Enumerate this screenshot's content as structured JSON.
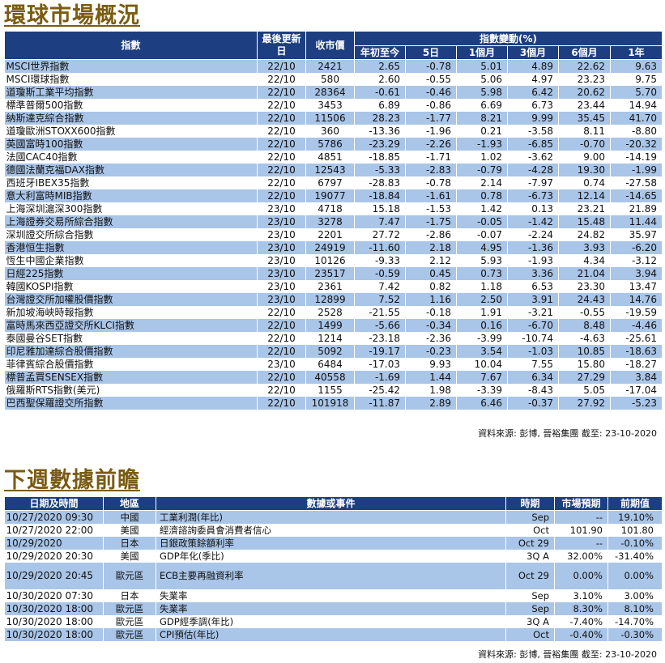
{
  "sections": {
    "market_title": "環球市場概況",
    "calendar_title": "下週數據前瞻"
  },
  "market": {
    "headers": {
      "index": "指數",
      "date": "最後更新日",
      "close": "收市價",
      "change_group": "指數變動(%)",
      "ytd": "年初至今",
      "d5": "5日",
      "m1": "1個月",
      "m3": "3個月",
      "m6": "6個月",
      "y1": "1年"
    },
    "rows": [
      {
        "name": "MSCI世界指數",
        "date": "22/10",
        "close": "2421",
        "ytd": "2.65",
        "d5": "-0.78",
        "m1": "5.01",
        "m3": "4.89",
        "m6": "22.62",
        "y1": "9.63"
      },
      {
        "name": "MSCI環球指數",
        "date": "22/10",
        "close": "580",
        "ytd": "2.60",
        "d5": "-0.55",
        "m1": "5.06",
        "m3": "4.97",
        "m6": "23.23",
        "y1": "9.75"
      },
      {
        "name": "道瓊斯工業平均指數",
        "date": "22/10",
        "close": "28364",
        "ytd": "-0.61",
        "d5": "-0.46",
        "m1": "5.98",
        "m3": "6.42",
        "m6": "20.62",
        "y1": "5.70"
      },
      {
        "name": "標準普爾500指數",
        "date": "22/10",
        "close": "3453",
        "ytd": "6.89",
        "d5": "-0.86",
        "m1": "6.69",
        "m3": "6.73",
        "m6": "23.44",
        "y1": "14.94"
      },
      {
        "name": "納斯達克綜合指數",
        "date": "22/10",
        "close": "11506",
        "ytd": "28.23",
        "d5": "-1.77",
        "m1": "8.21",
        "m3": "9.99",
        "m6": "35.45",
        "y1": "41.70"
      },
      {
        "name": "道瓊歐洲STOXX600指數",
        "date": "22/10",
        "close": "360",
        "ytd": "-13.36",
        "d5": "-1.96",
        "m1": "0.21",
        "m3": "-3.58",
        "m6": "8.11",
        "y1": "-8.80"
      },
      {
        "name": "英國富時100指數",
        "date": "22/10",
        "close": "5786",
        "ytd": "-23.29",
        "d5": "-2.26",
        "m1": "-1.93",
        "m3": "-6.85",
        "m6": "-0.70",
        "y1": "-20.32"
      },
      {
        "name": "法國CAC40指數",
        "date": "22/10",
        "close": "4851",
        "ytd": "-18.85",
        "d5": "-1.71",
        "m1": "1.02",
        "m3": "-3.62",
        "m6": "9.00",
        "y1": "-14.19"
      },
      {
        "name": "德國法蘭克福DAX指數",
        "date": "22/10",
        "close": "12543",
        "ytd": "-5.33",
        "d5": "-2.83",
        "m1": "-0.79",
        "m3": "-4.28",
        "m6": "19.30",
        "y1": "-1.99"
      },
      {
        "name": "西班牙IBEX35指數",
        "date": "22/10",
        "close": "6797",
        "ytd": "-28.83",
        "d5": "-0.78",
        "m1": "2.14",
        "m3": "-7.97",
        "m6": "0.74",
        "y1": "-27.58"
      },
      {
        "name": "意大利富時MIB指數",
        "date": "22/10",
        "close": "19077",
        "ytd": "-18.84",
        "d5": "-1.61",
        "m1": "0.78",
        "m3": "-6.73",
        "m6": "12.14",
        "y1": "-14.65"
      },
      {
        "name": "上海深圳滬深300指數",
        "date": "23/10",
        "close": "4718",
        "ytd": "15.18",
        "d5": "-1.53",
        "m1": "1.42",
        "m3": "0.13",
        "m6": "23.21",
        "y1": "21.89"
      },
      {
        "name": "上海證券交易所綜合指數",
        "date": "23/10",
        "close": "3278",
        "ytd": "7.47",
        "d5": "-1.75",
        "m1": "-0.05",
        "m3": "-1.42",
        "m6": "15.48",
        "y1": "11.44"
      },
      {
        "name": "深圳證交所綜合指數",
        "date": "23/10",
        "close": "2201",
        "ytd": "27.72",
        "d5": "-2.86",
        "m1": "-0.07",
        "m3": "-2.24",
        "m6": "24.82",
        "y1": "35.97"
      },
      {
        "name": "香港恒生指數",
        "date": "23/10",
        "close": "24919",
        "ytd": "-11.60",
        "d5": "2.18",
        "m1": "4.95",
        "m3": "-1.36",
        "m6": "3.93",
        "y1": "-6.20"
      },
      {
        "name": "恆生中國企業指數",
        "date": "23/10",
        "close": "10126",
        "ytd": "-9.33",
        "d5": "2.12",
        "m1": "5.93",
        "m3": "-1.93",
        "m6": "4.34",
        "y1": "-3.12"
      },
      {
        "name": "日經225指數",
        "date": "23/10",
        "close": "23517",
        "ytd": "-0.59",
        "d5": "0.45",
        "m1": "0.73",
        "m3": "3.36",
        "m6": "21.04",
        "y1": "3.94"
      },
      {
        "name": "韓國KOSPI指數",
        "date": "23/10",
        "close": "2361",
        "ytd": "7.42",
        "d5": "0.82",
        "m1": "1.18",
        "m3": "6.53",
        "m6": "23.30",
        "y1": "13.47"
      },
      {
        "name": "台灣證交所加權股價指數",
        "date": "23/10",
        "close": "12899",
        "ytd": "7.52",
        "d5": "1.16",
        "m1": "2.50",
        "m3": "3.91",
        "m6": "24.43",
        "y1": "14.76"
      },
      {
        "name": "新加坡海峽時報指數",
        "date": "22/10",
        "close": "2528",
        "ytd": "-21.55",
        "d5": "-0.18",
        "m1": "1.91",
        "m3": "-3.21",
        "m6": "-0.55",
        "y1": "-19.59"
      },
      {
        "name": "富時馬來西亞證交所KLCI指數",
        "date": "22/10",
        "close": "1499",
        "ytd": "-5.66",
        "d5": "-0.34",
        "m1": "0.16",
        "m3": "-6.70",
        "m6": "8.48",
        "y1": "-4.46"
      },
      {
        "name": "泰國曼谷SET指數",
        "date": "22/10",
        "close": "1214",
        "ytd": "-23.18",
        "d5": "-2.36",
        "m1": "-3.99",
        "m3": "-10.74",
        "m6": "-4.63",
        "y1": "-25.61"
      },
      {
        "name": "印尼雅加達綜合股價指數",
        "date": "22/10",
        "close": "5092",
        "ytd": "-19.17",
        "d5": "-0.23",
        "m1": "3.54",
        "m3": "-1.03",
        "m6": "10.85",
        "y1": "-18.63"
      },
      {
        "name": "菲律賓綜合股價指數",
        "date": "23/10",
        "close": "6484",
        "ytd": "-17.03",
        "d5": "9.93",
        "m1": "10.04",
        "m3": "7.55",
        "m6": "15.80",
        "y1": "-18.27"
      },
      {
        "name": "標普孟買SENSEX指數",
        "date": "22/10",
        "close": "40558",
        "ytd": "-1.69",
        "d5": "1.44",
        "m1": "7.67",
        "m3": "6.34",
        "m6": "27.29",
        "y1": "3.84"
      },
      {
        "name": "俄羅斯RTS指數(美元)",
        "date": "22/10",
        "close": "1155",
        "ytd": "-25.42",
        "d5": "1.98",
        "m1": "-3.39",
        "m3": "-8.43",
        "m6": "5.05",
        "y1": "-17.04"
      },
      {
        "name": "巴西聖保羅證交所指數",
        "date": "22/10",
        "close": "101918",
        "ytd": "-11.87",
        "d5": "2.89",
        "m1": "6.46",
        "m3": "-0.37",
        "m6": "27.92",
        "y1": "-5.23"
      }
    ],
    "source": "資料來源: 彭博, 晉裕集團 截至: 23-10-2020"
  },
  "calendar": {
    "headers": {
      "datetime": "日期及時間",
      "region": "地區",
      "event": "數據或事件",
      "period": "時期",
      "forecast": "市場預期",
      "previous": "前期值"
    },
    "rows": [
      {
        "datetime": "10/27/2020 09:30",
        "region": "中國",
        "event": "工業利潤(年比)",
        "period": "Sep",
        "forecast": "--",
        "previous": "19.10%"
      },
      {
        "datetime": "10/27/2020 22:00",
        "region": "美國",
        "event": "經濟諮詢委員會消費者信心",
        "period": "Oct",
        "forecast": "101.90",
        "previous": "101.80"
      },
      {
        "datetime": "10/29/2020",
        "region": "日本",
        "event": "日銀政策餘額利率",
        "period": "Oct 29",
        "forecast": "--",
        "previous": "-0.10%"
      },
      {
        "datetime": "10/29/2020 20:30",
        "region": "美國",
        "event": "GDP年化(季比)",
        "period": "3Q A",
        "forecast": "32.00%",
        "previous": "-31.40%"
      },
      {
        "datetime": "10/29/2020 20:45",
        "region": "歐元區",
        "event": "ECB主要再融資利率",
        "period": "Oct 29",
        "forecast": "0.00%",
        "previous": "0.00%"
      },
      {
        "datetime": "10/30/2020 07:30",
        "region": "日本",
        "event": "失業率",
        "period": "Sep",
        "forecast": "3.10%",
        "previous": "3.00%"
      },
      {
        "datetime": "10/30/2020 18:00",
        "region": "歐元區",
        "event": "失業率",
        "period": "Sep",
        "forecast": "8.30%",
        "previous": "8.10%"
      },
      {
        "datetime": "10/30/2020 18:00",
        "region": "歐元區",
        "event": "GDP經季調(年比)",
        "period": "3Q A",
        "forecast": "-7.40%",
        "previous": "-14.70%"
      },
      {
        "datetime": "10/30/2020 18:00",
        "region": "歐元區",
        "event": "CPI預估(年比)",
        "period": "Oct",
        "forecast": "-0.40%",
        "previous": "-0.30%"
      }
    ],
    "source": "資料來源: 彭博, 晉裕集團 截至: 23-10-2020"
  },
  "colors": {
    "header_bg": "#1d3e80",
    "band_bg": "#a9c5e8",
    "title_color": "#7a5c12"
  }
}
